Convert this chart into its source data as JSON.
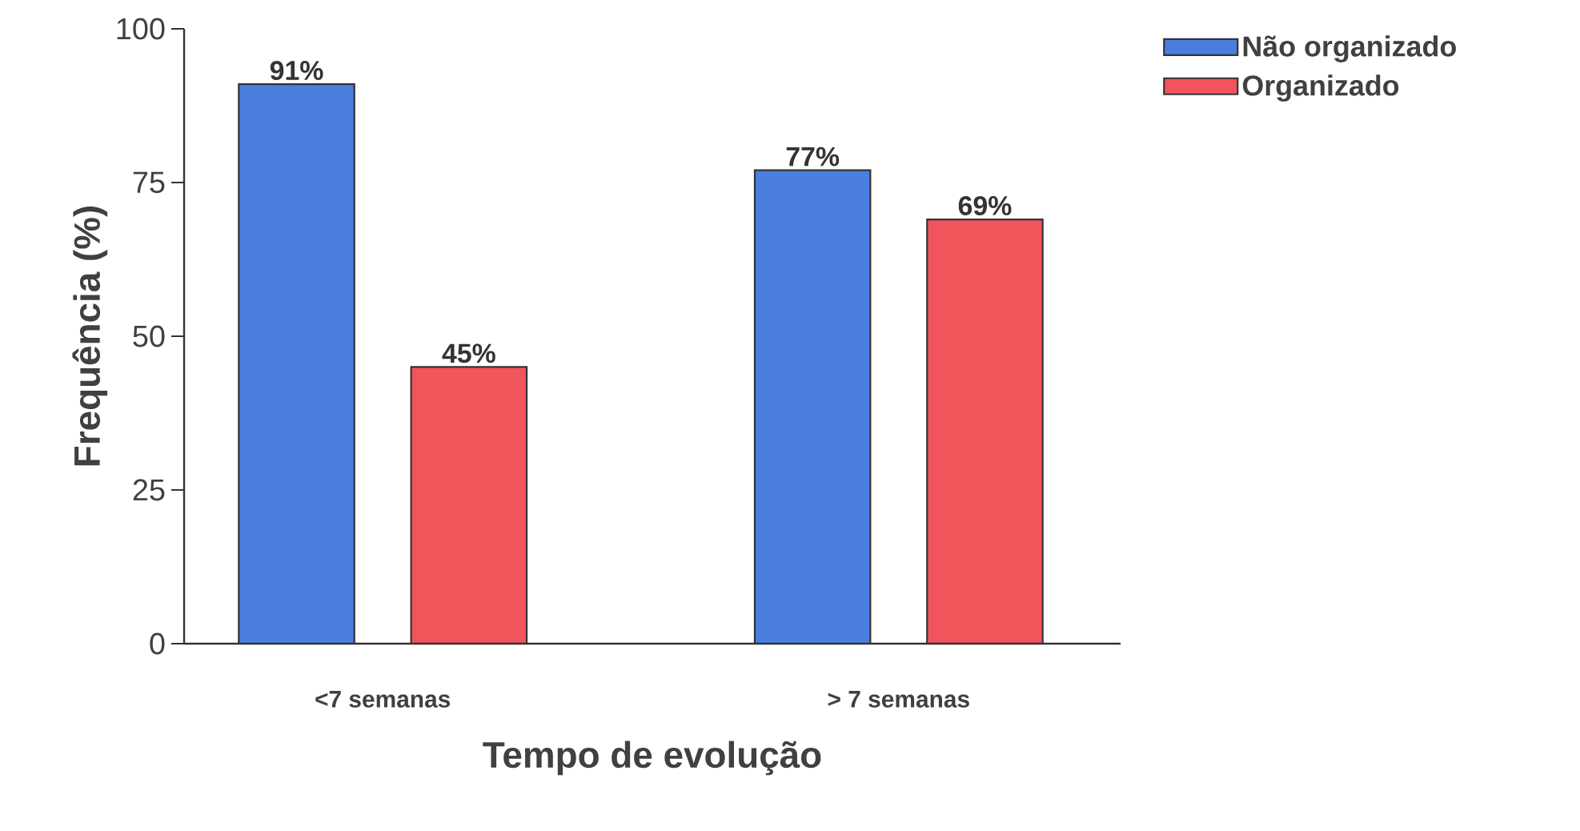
{
  "chart_data": {
    "type": "bar",
    "xlabel": "Tempo de evolução",
    "ylabel": "Frequência (%)",
    "categories": [
      "<7 semanas",
      "> 7 semanas"
    ],
    "series": [
      {
        "name": "Não organizado",
        "color": "#4a7fe0",
        "values": [
          91,
          77
        ],
        "value_labels": [
          "91%",
          "77%"
        ]
      },
      {
        "name": "Organizado",
        "color": "#f2545c",
        "values": [
          45,
          69
        ],
        "value_labels": [
          "45%",
          "69%"
        ]
      }
    ],
    "ylim": [
      0,
      100
    ],
    "yticks": [
      0,
      25,
      50,
      75,
      100
    ],
    "grid": false,
    "legend": "top right"
  }
}
